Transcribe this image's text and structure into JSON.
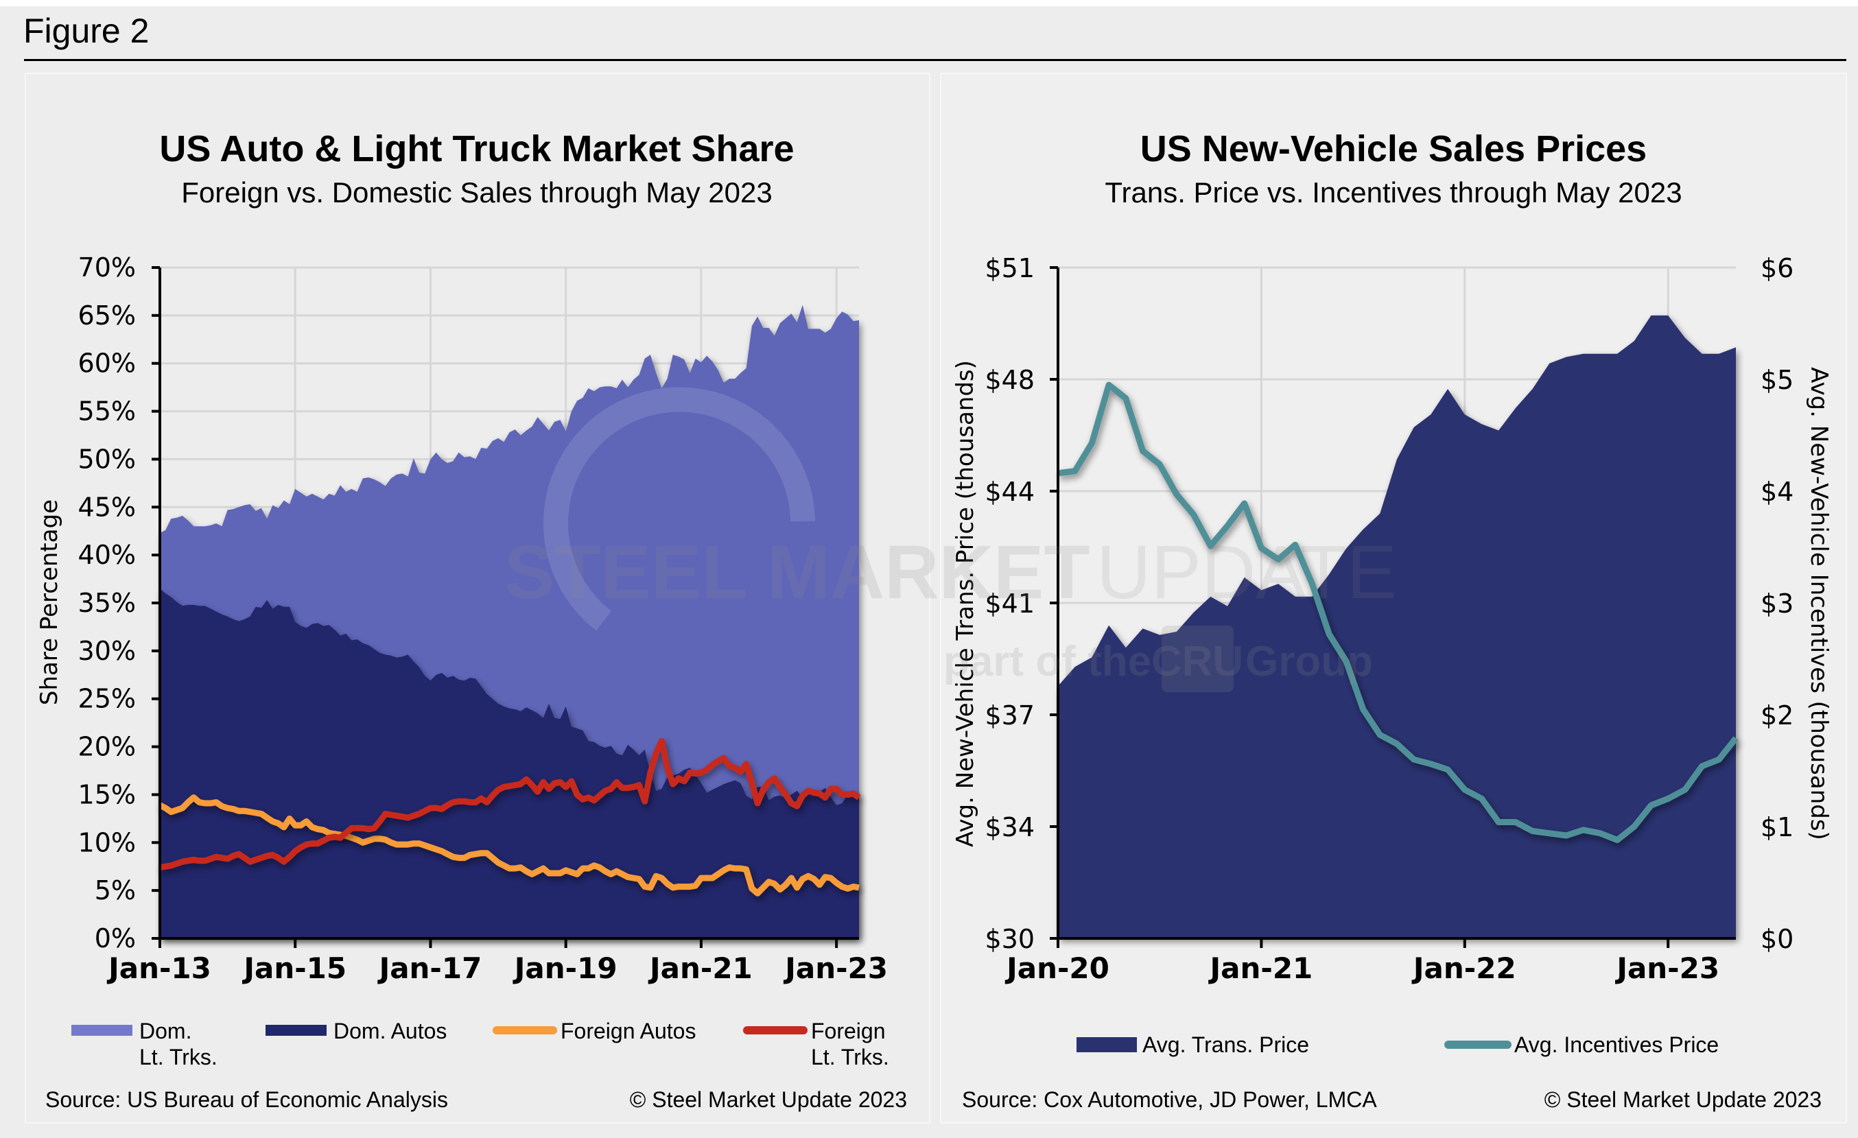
{
  "figure": {
    "title": "Figure 2"
  },
  "watermark": {
    "line1_bold": "STEEL MARKET",
    "line1_light": "UPDATE",
    "line2_pre": "part of the",
    "line2_badge": "CRU",
    "line2_post": "Group"
  },
  "colors": {
    "dom_lt_trks": "#5f66b8",
    "dom_lt_trks_legend": "#7579cc",
    "dom_autos": "#20286b",
    "foreign_autos": "#f79c38",
    "foreign_lt_trks": "#c7291e",
    "trans_price": "#29326f",
    "incentives": "#4f9098"
  },
  "chart_data": [
    {
      "type": "area",
      "title": "US Auto & Light Truck Market Share",
      "subtitle": "Foreign vs. Domestic Sales through May 2023",
      "xlabel": "",
      "ylabel": "Share Percentage",
      "x_start": "Jan-13",
      "x_end": "May-23",
      "x_frequency": "monthly",
      "xticks": [
        {
          "label": "Jan-13",
          "index": 0
        },
        {
          "label": "Jan-15",
          "index": 24
        },
        {
          "label": "Jan-17",
          "index": 48
        },
        {
          "label": "Jan-19",
          "index": 72
        },
        {
          "label": "Jan-21",
          "index": 96
        },
        {
          "label": "Jan-23",
          "index": 120
        }
      ],
      "yticks": [
        0,
        5,
        10,
        15,
        20,
        25,
        30,
        35,
        40,
        45,
        50,
        55,
        60,
        65,
        70
      ],
      "ytick_labels": [
        "0%",
        "5%",
        "10%",
        "15%",
        "20%",
        "25%",
        "30%",
        "35%",
        "40%",
        "45%",
        "50%",
        "55%",
        "60%",
        "65%",
        "70%"
      ],
      "ylim": [
        0,
        70
      ],
      "grid": true,
      "legend_position": "bottom",
      "source": "Source: US Bureau of Economic Analysis",
      "copyright": "© Steel Market Update 2023",
      "legend": [
        {
          "key": "dom_lt_trks",
          "line1": "Dom.",
          "line2": "Lt. Trks.",
          "style": "area"
        },
        {
          "key": "dom_autos",
          "line1": "Dom. Autos",
          "line2": "",
          "style": "area"
        },
        {
          "key": "foreign_autos",
          "line1": "Foreign Autos",
          "line2": "",
          "style": "line"
        },
        {
          "key": "foreign_lt_trks",
          "line1": "Foreign",
          "line2": "Lt. Trks.",
          "style": "line"
        }
      ],
      "series": [
        {
          "name": "Dom. Lt. Trks. (stacked top = total domestic share, %)",
          "key": "dom_lt_trks",
          "kind": "stacked-area-top",
          "values": [
            42.3,
            42.6,
            43.8,
            43.9,
            44.1,
            43.6,
            43.0,
            43.0,
            43.0,
            43.1,
            43.3,
            43.0,
            44.7,
            44.8,
            45.0,
            45.2,
            45.3,
            44.6,
            44.9,
            43.8,
            45.2,
            44.9,
            45.7,
            45.3,
            46.9,
            46.5,
            46.1,
            46.4,
            46.1,
            45.8,
            46.4,
            46.2,
            47.3,
            46.6,
            46.9,
            46.6,
            48.0,
            48.1,
            47.9,
            47.6,
            47.2,
            48.0,
            48.4,
            48.5,
            48.2,
            50.1,
            48.6,
            48.5,
            50.0,
            50.7,
            50.0,
            49.6,
            49.8,
            50.7,
            50.2,
            50.3,
            50.0,
            51.2,
            51.1,
            51.9,
            52.2,
            51.8,
            52.8,
            53.1,
            52.5,
            53.0,
            53.4,
            54.4,
            53.7,
            53.0,
            53.9,
            54.1,
            52.9,
            55.0,
            56.1,
            56.4,
            57.4,
            57.1,
            57.5,
            57.6,
            57.6,
            57.4,
            58.3,
            57.5,
            58.3,
            58.8,
            60.5,
            60.9,
            59.0,
            57.4,
            58.4,
            60.9,
            60.7,
            60.4,
            59.0,
            60.5,
            60.1,
            60.8,
            60.2,
            59.3,
            58.0,
            58.4,
            58.4,
            59.0,
            59.5,
            63.9,
            64.9,
            63.7,
            63.7,
            62.9,
            64.2,
            64.7,
            65.2,
            64.3,
            66.1,
            63.6,
            63.6,
            63.6,
            63.2,
            63.6,
            64.7,
            65.4,
            65.1,
            64.4,
            64.5
          ]
        },
        {
          "name": "Dom. Autos (%)",
          "key": "dom_autos",
          "kind": "area",
          "values": [
            36.5,
            36.0,
            35.6,
            35.1,
            34.7,
            34.8,
            34.8,
            34.7,
            34.7,
            34.4,
            34.1,
            33.8,
            33.6,
            33.3,
            33.1,
            33.3,
            33.6,
            34.6,
            34.5,
            35.3,
            34.4,
            34.8,
            34.6,
            34.6,
            33.0,
            32.6,
            32.4,
            32.8,
            32.9,
            32.6,
            32.7,
            32.2,
            31.6,
            31.8,
            31.1,
            31.2,
            30.8,
            30.6,
            30.2,
            29.8,
            29.6,
            29.5,
            29.3,
            29.4,
            29.6,
            28.9,
            28.3,
            27.4,
            26.9,
            27.5,
            27.7,
            27.2,
            27.4,
            27.0,
            26.9,
            27.2,
            27.1,
            26.3,
            25.5,
            25.0,
            24.5,
            24.2,
            24.0,
            23.9,
            23.7,
            24.1,
            23.8,
            23.5,
            23.0,
            24.5,
            23.0,
            22.9,
            24.2,
            22.1,
            21.9,
            21.7,
            20.6,
            20.5,
            20.1,
            19.9,
            20.1,
            19.3,
            19.1,
            20.2,
            19.7,
            19.1,
            19.7,
            17.3,
            15.4,
            15.6,
            16.8,
            17.0,
            17.2,
            17.6,
            17.8,
            17.0,
            16.2,
            15.2,
            15.5,
            15.8,
            16.1,
            16.3,
            16.5,
            16.2,
            14.9,
            14.5,
            15.8,
            15.8,
            14.4,
            14.8,
            14.9,
            14.6,
            15.0,
            15.4,
            14.7,
            15.1,
            15.3,
            15.3,
            15.7,
            14.7,
            13.9,
            14.1,
            15.0,
            15.1,
            14.9
          ]
        },
        {
          "name": "Foreign Autos (%)",
          "key": "foreign_autos",
          "kind": "line",
          "values": [
            13.9,
            13.6,
            13.2,
            13.4,
            13.6,
            14.2,
            14.7,
            14.2,
            14.1,
            14.1,
            14.2,
            13.8,
            13.6,
            13.5,
            13.3,
            13.3,
            13.2,
            13.1,
            13.0,
            12.6,
            12.2,
            12.0,
            11.6,
            12.5,
            11.8,
            11.8,
            12.2,
            11.6,
            11.4,
            11.3,
            11.0,
            10.9,
            10.8,
            10.7,
            10.5,
            10.3,
            10.0,
            10.2,
            10.4,
            10.4,
            10.3,
            10.0,
            9.8,
            9.8,
            9.8,
            9.9,
            9.9,
            9.7,
            9.5,
            9.3,
            9.1,
            8.8,
            8.5,
            8.4,
            8.4,
            8.7,
            8.8,
            8.9,
            8.9,
            8.4,
            7.9,
            7.6,
            7.3,
            7.3,
            7.4,
            7.0,
            6.7,
            7.0,
            7.3,
            6.8,
            6.8,
            6.8,
            7.1,
            6.9,
            6.7,
            7.3,
            7.3,
            7.6,
            7.4,
            7.0,
            6.7,
            7.0,
            6.7,
            6.4,
            6.3,
            6.2,
            5.4,
            5.3,
            6.5,
            6.3,
            5.7,
            5.3,
            5.4,
            5.4,
            5.4,
            5.5,
            6.3,
            6.3,
            6.3,
            6.7,
            7.1,
            7.4,
            7.3,
            7.3,
            7.2,
            5.2,
            4.7,
            5.3,
            5.9,
            5.7,
            5.1,
            5.6,
            6.3,
            5.3,
            6.2,
            6.5,
            6.2,
            5.6,
            6.4,
            6.3,
            5.8,
            5.4,
            5.2,
            5.4,
            5.3
          ]
        },
        {
          "name": "Foreign Lt. Trks. (%)",
          "key": "foreign_lt_trks",
          "kind": "line",
          "values": [
            7.4,
            7.5,
            7.6,
            7.8,
            8.0,
            8.1,
            8.2,
            8.1,
            8.1,
            8.3,
            8.5,
            8.4,
            8.3,
            8.6,
            8.8,
            8.4,
            8.0,
            8.2,
            8.4,
            8.6,
            8.7,
            8.4,
            8.0,
            8.5,
            9.1,
            9.5,
            9.8,
            9.9,
            9.9,
            10.2,
            10.5,
            10.6,
            10.5,
            11.0,
            11.5,
            11.5,
            11.5,
            11.4,
            11.5,
            12.2,
            13.0,
            12.9,
            12.8,
            12.7,
            12.6,
            12.8,
            13.0,
            13.3,
            13.6,
            13.6,
            13.5,
            13.9,
            14.2,
            14.3,
            14.3,
            14.2,
            14.2,
            14.6,
            14.2,
            14.9,
            15.5,
            15.8,
            15.9,
            16.0,
            16.1,
            16.6,
            16.0,
            15.3,
            16.3,
            15.6,
            16.2,
            16.3,
            15.8,
            16.4,
            15.0,
            14.5,
            14.7,
            14.4,
            14.9,
            15.4,
            15.6,
            16.3,
            15.7,
            15.7,
            15.8,
            16.0,
            14.3,
            17.3,
            19.3,
            20.6,
            17.8,
            16.1,
            16.7,
            16.4,
            17.3,
            17.2,
            17.3,
            17.6,
            18.1,
            18.5,
            18.8,
            18.0,
            17.8,
            17.4,
            18.2,
            16.2,
            14.1,
            15.5,
            16.3,
            16.7,
            15.8,
            15.0,
            14.1,
            13.8,
            14.9,
            15.4,
            15.2,
            15.1,
            14.7,
            15.6,
            15.6,
            15.0,
            15.0,
            15.1,
            14.7
          ]
        }
      ]
    },
    {
      "type": "area",
      "title": "US New-Vehicle Sales Prices",
      "subtitle": "Trans. Price vs. Incentives through May 2023",
      "xlabel": "",
      "ylabel": "Avg. New-Vehicle Trans. Price (thousands)",
      "ylabel_right": "Avg. New-Vehicle Incentives (thousands)",
      "x_start": "Jan-20",
      "x_end": "May-23",
      "x_frequency": "monthly",
      "xticks": [
        {
          "label": "Jan-20",
          "index": 0
        },
        {
          "label": "Jan-21",
          "index": 12
        },
        {
          "label": "Jan-22",
          "index": 24
        },
        {
          "label": "Jan-23",
          "index": 36
        }
      ],
      "ylim": [
        30,
        51
      ],
      "yticks": [
        30,
        33.5,
        37,
        40.5,
        44,
        47.5,
        51
      ],
      "ytick_labels": [
        "$30",
        "$34",
        "$37",
        "$41",
        "$44",
        "$48",
        "$51"
      ],
      "ylim_right": [
        0,
        6
      ],
      "yticks_right": [
        0,
        1,
        2,
        3,
        4,
        5,
        6
      ],
      "ytick_labels_right": [
        "$0",
        "$1",
        "$2",
        "$3",
        "$4",
        "$5",
        "$6"
      ],
      "grid": true,
      "legend_position": "bottom",
      "source": "Source: Cox Automotive, JD Power, LMCA",
      "copyright": "© Steel Market Update 2023",
      "legend": [
        {
          "key": "trans_price",
          "line1": "Avg. Trans. Price",
          "style": "area"
        },
        {
          "key": "incentives",
          "line1": "Avg. Incentives Price",
          "style": "line"
        }
      ],
      "series": [
        {
          "name": "Avg. Trans. Price ($ thousands, left axis)",
          "key": "trans_price",
          "kind": "area",
          "axis": "left",
          "values": [
            37.9,
            38.5,
            38.8,
            39.8,
            39.1,
            39.7,
            39.5,
            39.6,
            40.2,
            40.7,
            40.4,
            41.3,
            40.9,
            41.1,
            40.7,
            40.7,
            41.4,
            42.2,
            42.8,
            43.3,
            45.0,
            46.0,
            46.4,
            47.2,
            46.4,
            46.1,
            45.9,
            46.6,
            47.2,
            48.0,
            48.2,
            48.3,
            48.3,
            48.3,
            48.7,
            49.5,
            49.5,
            48.8,
            48.3,
            48.3,
            48.5
          ]
        },
        {
          "name": "Avg. Incentives Price ($ thousands, right axis)",
          "key": "incentives",
          "kind": "line",
          "axis": "right",
          "values": [
            4.16,
            4.18,
            4.43,
            4.95,
            4.83,
            4.36,
            4.24,
            3.97,
            3.79,
            3.51,
            3.69,
            3.89,
            3.49,
            3.39,
            3.52,
            3.17,
            2.72,
            2.48,
            2.05,
            1.82,
            1.74,
            1.6,
            1.56,
            1.51,
            1.33,
            1.25,
            1.04,
            1.04,
            0.96,
            0.94,
            0.92,
            0.97,
            0.94,
            0.88,
            1.0,
            1.19,
            1.25,
            1.33,
            1.54,
            1.6,
            1.79
          ]
        }
      ]
    }
  ]
}
